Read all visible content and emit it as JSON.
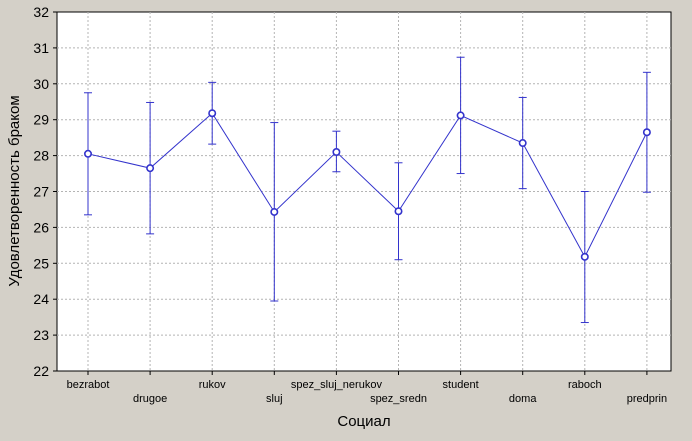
{
  "chart_data": {
    "type": "line",
    "xlabel": "Социал",
    "ylabel": "Удовлетворенность браком",
    "ylim": [
      22,
      32
    ],
    "yticks": [
      22,
      23,
      24,
      25,
      26,
      27,
      28,
      29,
      30,
      31,
      32
    ],
    "grid": true,
    "categories": [
      "bezrabot",
      "drugoe",
      "rukov",
      "sluj",
      "spez_sluj_nerukov",
      "spez_sredn",
      "student",
      "doma",
      "raboch",
      "predprin"
    ],
    "series": [
      {
        "values": [
          28.05,
          27.65,
          29.18,
          26.43,
          28.1,
          26.45,
          29.12,
          28.35,
          25.18,
          28.65
        ],
        "lower": [
          26.35,
          25.82,
          28.32,
          23.95,
          27.55,
          25.1,
          27.5,
          27.08,
          23.35,
          26.98
        ],
        "upper": [
          29.75,
          29.48,
          30.04,
          28.92,
          28.68,
          27.8,
          30.74,
          29.62,
          27.0,
          30.32
        ]
      }
    ],
    "colors": {
      "series": "#3333cc",
      "plot_bg": "#ffffff",
      "page_bg": "#d4d0c8",
      "grid": "#b4b4b4"
    }
  }
}
